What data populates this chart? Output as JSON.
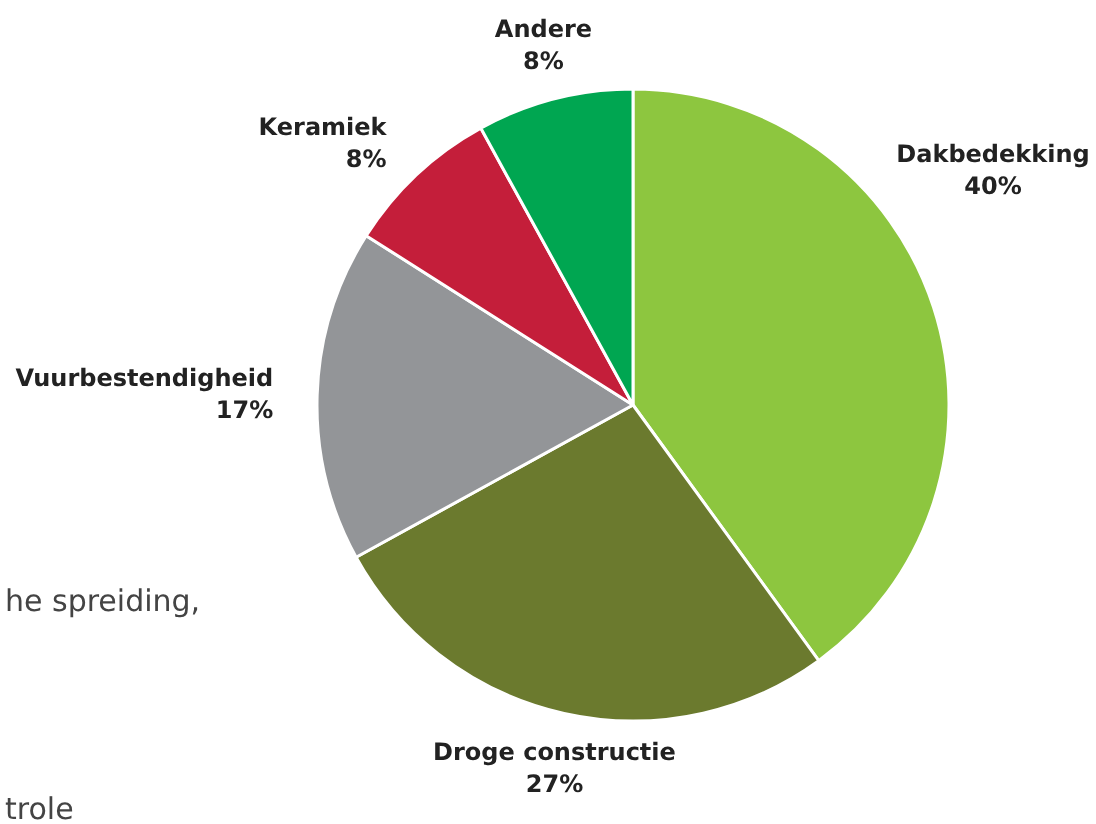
{
  "chart_data": {
    "type": "pie",
    "categories": [
      "Dakbedekking",
      "Droge constructie",
      "Vuurbestendigheid",
      "Keramiek",
      "Andere"
    ],
    "values": [
      40,
      27,
      17,
      8,
      8
    ],
    "value_labels": [
      "40%",
      "27%",
      "17%",
      "8%",
      "8%"
    ],
    "colors": [
      "#8dc63f",
      "#6b7a2e",
      "#939598",
      "#c41e3a",
      "#00a651"
    ],
    "annotations": [
      "he spreiding,",
      "trole"
    ]
  }
}
